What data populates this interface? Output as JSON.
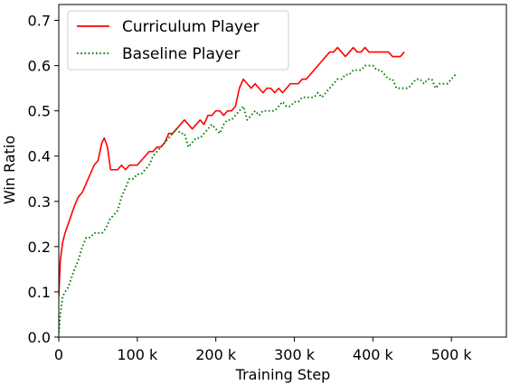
{
  "chart_data": {
    "type": "line",
    "xlabel": "Training Step",
    "ylabel": "Win Ratio",
    "xlim": [
      0,
      570000
    ],
    "ylim": [
      0,
      0.735
    ],
    "x_ticks": [
      0,
      100000,
      200000,
      300000,
      400000,
      500000
    ],
    "x_tick_labels": [
      "0",
      "100 k",
      "200 k",
      "300 k",
      "400 k",
      "500 k"
    ],
    "y_ticks": [
      0.0,
      0.1,
      0.2,
      0.3,
      0.4,
      0.5,
      0.6,
      0.7
    ],
    "y_tick_labels": [
      "0.0",
      "0.1",
      "0.2",
      "0.3",
      "0.4",
      "0.5",
      "0.6",
      "0.7"
    ],
    "grid": false,
    "legend_position": "top-left",
    "series": [
      {
        "name": "Curriculum Player",
        "color": "#ff0000",
        "style": "solid",
        "x": [
          0,
          2000,
          5000,
          8000,
          12000,
          16000,
          20000,
          25000,
          30000,
          35000,
          40000,
          45000,
          50000,
          55000,
          58000,
          62000,
          66000,
          70000,
          75000,
          80000,
          85000,
          90000,
          95000,
          100000,
          105000,
          110000,
          115000,
          120000,
          125000,
          130000,
          135000,
          140000,
          145000,
          150000,
          155000,
          160000,
          165000,
          170000,
          175000,
          180000,
          185000,
          190000,
          195000,
          200000,
          205000,
          210000,
          215000,
          220000,
          225000,
          230000,
          235000,
          240000,
          245000,
          250000,
          255000,
          260000,
          265000,
          270000,
          275000,
          280000,
          285000,
          290000,
          295000,
          300000,
          305000,
          310000,
          315000,
          320000,
          325000,
          330000,
          335000,
          340000,
          345000,
          350000,
          355000,
          360000,
          365000,
          370000,
          375000,
          380000,
          385000,
          390000,
          395000,
          400000,
          405000,
          410000,
          415000,
          420000,
          425000,
          430000,
          435000,
          440000
        ],
        "y": [
          0.09,
          0.17,
          0.21,
          0.23,
          0.25,
          0.27,
          0.29,
          0.31,
          0.32,
          0.34,
          0.36,
          0.38,
          0.39,
          0.43,
          0.44,
          0.42,
          0.37,
          0.37,
          0.37,
          0.38,
          0.37,
          0.38,
          0.38,
          0.38,
          0.39,
          0.4,
          0.41,
          0.41,
          0.42,
          0.42,
          0.43,
          0.45,
          0.45,
          0.46,
          0.47,
          0.48,
          0.47,
          0.46,
          0.47,
          0.48,
          0.47,
          0.49,
          0.49,
          0.5,
          0.5,
          0.49,
          0.5,
          0.5,
          0.51,
          0.55,
          0.57,
          0.56,
          0.55,
          0.56,
          0.55,
          0.54,
          0.55,
          0.55,
          0.54,
          0.55,
          0.54,
          0.55,
          0.56,
          0.56,
          0.56,
          0.57,
          0.57,
          0.58,
          0.59,
          0.6,
          0.61,
          0.62,
          0.63,
          0.63,
          0.64,
          0.63,
          0.62,
          0.63,
          0.64,
          0.63,
          0.63,
          0.64,
          0.63,
          0.63,
          0.63,
          0.63,
          0.63,
          0.63,
          0.62,
          0.62,
          0.62,
          0.63
        ]
      },
      {
        "name": "Baseline Player",
        "color": "#008000",
        "style": "dotted",
        "x": [
          0,
          2000,
          5000,
          8000,
          12000,
          16000,
          20000,
          25000,
          30000,
          35000,
          40000,
          45000,
          50000,
          55000,
          60000,
          65000,
          70000,
          75000,
          80000,
          85000,
          90000,
          95000,
          100000,
          105000,
          110000,
          115000,
          120000,
          125000,
          130000,
          135000,
          140000,
          145000,
          150000,
          155000,
          160000,
          165000,
          170000,
          175000,
          180000,
          185000,
          190000,
          195000,
          200000,
          205000,
          210000,
          215000,
          220000,
          225000,
          230000,
          235000,
          240000,
          245000,
          250000,
          255000,
          260000,
          265000,
          270000,
          275000,
          280000,
          285000,
          290000,
          295000,
          300000,
          305000,
          310000,
          315000,
          320000,
          325000,
          330000,
          335000,
          340000,
          345000,
          350000,
          355000,
          360000,
          365000,
          370000,
          375000,
          380000,
          385000,
          390000,
          395000,
          400000,
          405000,
          410000,
          415000,
          420000,
          425000,
          430000,
          435000,
          440000,
          445000,
          450000,
          455000,
          460000,
          465000,
          470000,
          475000,
          480000,
          485000,
          490000,
          495000,
          500000,
          505000
        ],
        "y": [
          0.01,
          0.05,
          0.09,
          0.1,
          0.11,
          0.13,
          0.15,
          0.17,
          0.2,
          0.22,
          0.22,
          0.23,
          0.23,
          0.23,
          0.24,
          0.26,
          0.27,
          0.28,
          0.31,
          0.33,
          0.35,
          0.35,
          0.36,
          0.36,
          0.37,
          0.38,
          0.4,
          0.41,
          0.42,
          0.43,
          0.44,
          0.45,
          0.46,
          0.45,
          0.45,
          0.42,
          0.43,
          0.44,
          0.44,
          0.45,
          0.46,
          0.47,
          0.46,
          0.45,
          0.47,
          0.48,
          0.48,
          0.49,
          0.5,
          0.51,
          0.48,
          0.49,
          0.5,
          0.49,
          0.5,
          0.5,
          0.5,
          0.5,
          0.51,
          0.52,
          0.51,
          0.51,
          0.52,
          0.52,
          0.53,
          0.53,
          0.53,
          0.53,
          0.54,
          0.53,
          0.54,
          0.55,
          0.56,
          0.57,
          0.57,
          0.58,
          0.58,
          0.59,
          0.59,
          0.59,
          0.6,
          0.6,
          0.6,
          0.59,
          0.59,
          0.58,
          0.57,
          0.57,
          0.55,
          0.55,
          0.55,
          0.55,
          0.56,
          0.57,
          0.57,
          0.56,
          0.57,
          0.57,
          0.55,
          0.56,
          0.56,
          0.56,
          0.57,
          0.58
        ]
      }
    ]
  }
}
